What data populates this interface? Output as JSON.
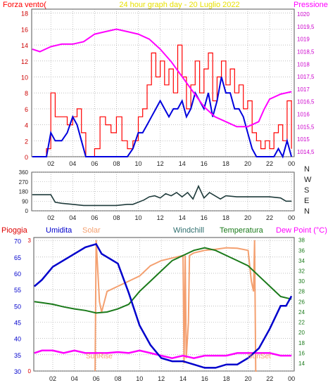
{
  "colors": {
    "wind_speed": "#ff0000",
    "wind_avg": "#0000dd",
    "pressure": "#ff00ff",
    "wind_dir": "#1f3b3b",
    "rain": "#dd0000",
    "humidity": "#0000cc",
    "solar": "#f4a070",
    "windchill": "#2e6e6e",
    "temperature": "#1a7a1a",
    "dew_point": "#ff00ff",
    "grid": "#9a9a9a",
    "title": "#e8e000"
  },
  "chart_data": [
    {
      "type": "line",
      "title": "24 hour graph day - 20 Luglio 2022",
      "left_axis_label": "Forza vento(",
      "right_axis_label": "Pressione",
      "x_ticks": [
        "02",
        "04",
        "06",
        "08",
        "10",
        "12",
        "14",
        "16",
        "18",
        "20",
        "22",
        "00"
      ],
      "ylim": [
        0,
        18.5
      ],
      "y_ticks": [
        0,
        2,
        4,
        6,
        8,
        10,
        12,
        14,
        16,
        18
      ],
      "ylim_right": [
        1014.3,
        1020.2
      ],
      "y_ticks_right": [
        "1014,5",
        "1015",
        "1015,5",
        "1016",
        "1016,5",
        "1017",
        "1017,5",
        "1018",
        "1018,5",
        "1019",
        "1019,5",
        "1020"
      ],
      "x_range_hours": [
        0.25,
        24.25
      ],
      "series": [
        {
          "role": "speed",
          "x": [
            0.3,
            1.0,
            1.6,
            2.0,
            2.4,
            3.0,
            3.5,
            4.0,
            4.4,
            4.8,
            5.2,
            5.5,
            6.0,
            6.5,
            7.0,
            7.5,
            8.0,
            8.5,
            9.0,
            9.5,
            10.0,
            10.4,
            10.8,
            11.2,
            11.6,
            12.0,
            12.4,
            12.8,
            13.2,
            13.6,
            14.0,
            14.4,
            14.8,
            15.2,
            15.6,
            16.0,
            16.4,
            16.8,
            17.2,
            17.6,
            18.0,
            18.4,
            18.8,
            19.2,
            19.6,
            20.0,
            20.4,
            20.8,
            21.2,
            21.6,
            22.0,
            22.4,
            22.8,
            23.2,
            23.6,
            24.0
          ],
          "y": [
            0,
            0,
            1,
            8,
            5,
            5,
            4,
            5,
            6,
            3,
            0,
            0,
            1,
            5,
            4,
            3,
            5,
            2,
            1,
            2,
            5,
            6,
            9,
            13,
            10,
            12,
            9,
            11,
            8,
            14,
            10,
            6,
            9,
            12,
            8,
            11,
            13,
            7,
            10,
            12,
            9,
            11,
            8,
            9,
            6,
            7,
            3,
            2,
            1,
            2,
            1,
            3,
            4,
            2,
            7,
            1
          ]
        },
        {
          "role": "avg",
          "x": [
            0.3,
            1.0,
            1.6,
            2.0,
            2.4,
            3.0,
            3.5,
            4.0,
            4.4,
            4.8,
            5.2,
            5.5,
            6.0,
            6.5,
            7.0,
            7.5,
            8.0,
            8.5,
            9.0,
            9.5,
            10.0,
            10.4,
            10.8,
            11.2,
            11.6,
            12.0,
            12.4,
            12.8,
            13.2,
            13.6,
            14.0,
            14.4,
            14.8,
            15.2,
            15.6,
            16.0,
            16.4,
            16.8,
            17.2,
            17.6,
            18.0,
            18.4,
            18.8,
            19.2,
            19.6,
            20.0,
            20.4,
            20.8,
            21.2,
            21.6,
            22.0,
            22.4,
            22.8,
            23.2,
            23.6,
            24.0
          ],
          "y": [
            0,
            0,
            0,
            3,
            2,
            2,
            3,
            5,
            4,
            2,
            0,
            0,
            0,
            0,
            0,
            0,
            0,
            0,
            0,
            1,
            3,
            3,
            4,
            5,
            6,
            7,
            6,
            5,
            6,
            6,
            7,
            5,
            6,
            8,
            7,
            6,
            8,
            5,
            7,
            10,
            8,
            8,
            6,
            6,
            5,
            3,
            1,
            0,
            0,
            0,
            0,
            0,
            1,
            0,
            2,
            0
          ]
        },
        {
          "role": "pressure",
          "x": [
            0.3,
            1,
            2,
            3,
            4,
            5,
            6,
            7,
            8,
            9,
            10,
            11,
            12,
            13,
            14,
            15,
            16,
            17,
            18,
            19,
            20,
            21,
            21.5,
            22,
            23,
            24
          ],
          "y": [
            1018.6,
            1018.5,
            1018.7,
            1018.8,
            1018.8,
            1018.9,
            1019.2,
            1019.3,
            1019.4,
            1019.3,
            1019.2,
            1019.0,
            1018.6,
            1018.1,
            1017.5,
            1016.9,
            1016.3,
            1015.9,
            1015.7,
            1015.5,
            1015.5,
            1015.7,
            1016.2,
            1016.6,
            1016.8,
            1016.9
          ]
        }
      ]
    },
    {
      "type": "line",
      "x_ticks": [
        "02",
        "04",
        "06",
        "08",
        "10",
        "12",
        "14",
        "16",
        "18",
        "20",
        "22",
        "00"
      ],
      "y_ticks": [
        0,
        90,
        180,
        270,
        360
      ],
      "ylim": [
        0,
        360
      ],
      "right_labels": [
        "N",
        "W",
        "S",
        "E",
        "N"
      ],
      "x_range_hours": [
        0.25,
        24.25
      ],
      "series": [
        {
          "role": "direction",
          "x": [
            0.3,
            1,
            2,
            2.4,
            3,
            4,
            5,
            6,
            7,
            8,
            9,
            9.5,
            10,
            10.5,
            11,
            11.5,
            12,
            12.5,
            13,
            13.5,
            14,
            14.5,
            15,
            15.5,
            16,
            16.5,
            17,
            17.5,
            18,
            19,
            20,
            21,
            22,
            23,
            23.5,
            24
          ],
          "y": [
            150,
            150,
            150,
            80,
            70,
            60,
            50,
            50,
            50,
            50,
            60,
            60,
            80,
            100,
            130,
            140,
            120,
            160,
            140,
            170,
            130,
            170,
            110,
            230,
            120,
            170,
            140,
            110,
            140,
            130,
            130,
            130,
            130,
            120,
            90,
            90
          ]
        }
      ]
    },
    {
      "type": "line",
      "legend": [
        "Pioggia",
        "Umidita",
        "Solar",
        "Windchill",
        "Temperatura",
        "Dew Point (°C)"
      ],
      "annotations": [
        "SunRise",
        "SunSet"
      ],
      "x_ticks": [
        "02",
        "04",
        "06",
        "08",
        "10",
        "12",
        "14",
        "16",
        "18",
        "20",
        "22",
        "00"
      ],
      "x_range_hours": [
        0.25,
        24.25
      ],
      "ylim": [
        30,
        71
      ],
      "y_ticks": [
        30,
        35,
        40,
        45,
        50,
        55,
        60,
        65,
        70
      ],
      "ylim_right": [
        12.5,
        38.5
      ],
      "y_ticks_right": [
        14,
        16,
        18,
        20,
        22,
        24,
        26,
        28,
        30,
        32,
        34,
        36,
        38
      ],
      "rain_ticks": [
        0,
        3
      ],
      "series": [
        {
          "role": "humidity",
          "x": [
            0.3,
            1,
            2,
            3,
            4,
            5,
            6,
            6.5,
            7,
            8,
            9,
            10,
            11,
            12,
            13,
            14,
            15,
            16,
            17,
            18,
            19,
            20,
            21,
            22,
            23,
            23.5,
            24
          ],
          "y": [
            56,
            58,
            62,
            64,
            66,
            68,
            69,
            66,
            65,
            63,
            54,
            44,
            38,
            34,
            33,
            33,
            32,
            31,
            31,
            32,
            32,
            34,
            37,
            43,
            50,
            50,
            53
          ]
        },
        {
          "role": "temperature",
          "x": [
            0.3,
            1,
            2,
            3,
            4,
            5,
            6,
            7,
            8,
            9,
            10,
            11,
            12,
            13,
            14,
            15,
            16,
            17,
            18,
            19,
            20,
            21,
            22,
            23,
            24
          ],
          "y": [
            26.0,
            25.8,
            25.5,
            25.0,
            24.6,
            24.3,
            23.8,
            24.0,
            24.6,
            25.5,
            28.0,
            30.0,
            32.0,
            34.0,
            35.0,
            36.0,
            36.5,
            36.0,
            35.0,
            34.0,
            33.0,
            31.0,
            29.0,
            27.0,
            26.5
          ]
        },
        {
          "role": "dew_point",
          "x": [
            0.3,
            1,
            2,
            3,
            4,
            5,
            6,
            7,
            8,
            9,
            10,
            11,
            12,
            13,
            14,
            15,
            16,
            17,
            18,
            19,
            20,
            21,
            22,
            23,
            24
          ],
          "y": [
            16.0,
            16.5,
            16.5,
            16.0,
            16.5,
            16.0,
            16.0,
            16.0,
            16.2,
            16.0,
            16.5,
            16.0,
            15.5,
            15.0,
            15.5,
            15.0,
            15.5,
            15.5,
            15.5,
            16.0,
            16.0,
            16.0,
            16.0,
            15.5,
            15.5
          ]
        },
        {
          "role": "solar",
          "x": [
            5.9,
            6.0,
            6.3,
            6.5,
            7.0,
            8.0,
            9.0,
            10.0,
            11.0,
            12.0,
            13.0,
            14.0,
            14.1,
            14.2,
            14.3,
            14.5,
            14.6,
            15.0,
            16.0,
            17.0,
            18.0,
            19.0,
            20.0,
            20.3,
            20.5,
            20.6,
            20.7,
            20.8
          ],
          "y": [
            12.5,
            38,
            26,
            24,
            28,
            29,
            30,
            31,
            33,
            34,
            34.5,
            35,
            14,
            35,
            15,
            22,
            35,
            35.5,
            36,
            36.2,
            36.5,
            36.4,
            36,
            30,
            28,
            38,
            12.5,
            12.5
          ]
        }
      ]
    }
  ]
}
